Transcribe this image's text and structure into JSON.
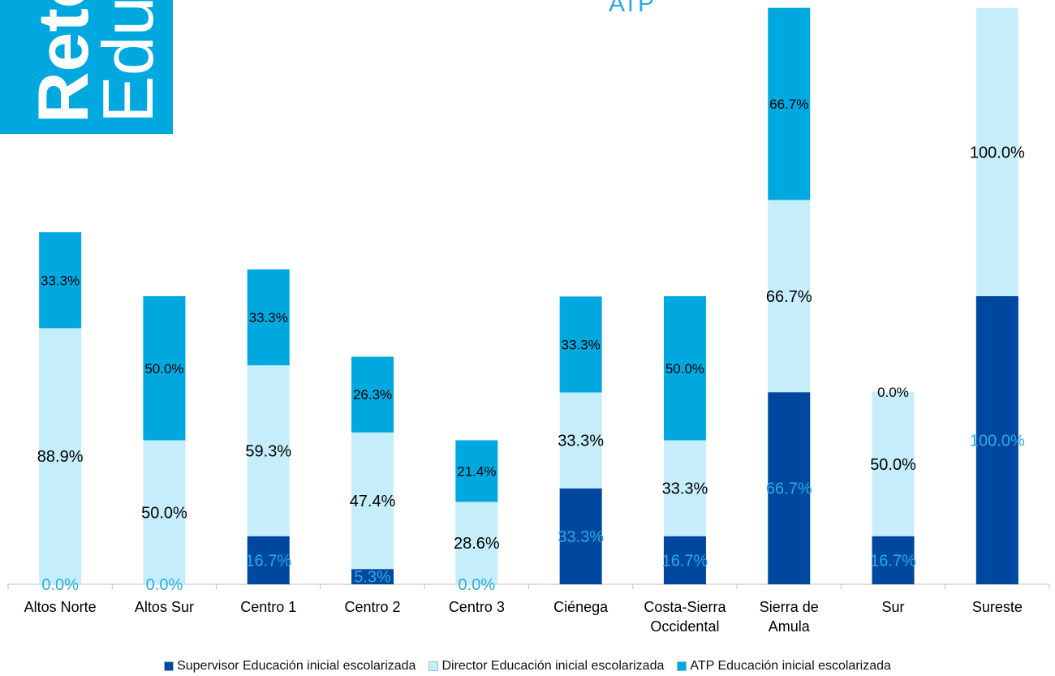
{
  "banner": {
    "bold": "Reto",
    "light": "Edu"
  },
  "chart_data": {
    "type": "stacked_bar",
    "title": "ATP",
    "categories": [
      "Altos Norte",
      "Altos Sur",
      "Centro 1",
      "Centro 2",
      "Centro 3",
      "Ciénega",
      "Costa-Sierra Occidental",
      "Sierra de Amula",
      "Sur",
      "Sureste"
    ],
    "series": [
      {
        "name": "Supervisor Educación inicial escolarizada",
        "color": "#0047a0",
        "label_color": "#29abe2",
        "values": [
          0,
          0,
          16.7,
          5.3,
          0,
          33.3,
          16.7,
          66.7,
          16.7,
          100
        ],
        "value_labels": [
          "0.0%",
          "0.0%",
          "16.7%",
          "5.3%",
          "0.0%",
          "33.3%",
          "16.7%",
          "66.7%",
          "16.7%",
          "100.0%"
        ]
      },
      {
        "name": "Director Educación inicial escolarizada",
        "color": "#c6eefa",
        "label_color": "#000000",
        "values": [
          88.9,
          50,
          59.3,
          47.4,
          28.6,
          33.3,
          33.3,
          66.7,
          50,
          100
        ],
        "value_labels": [
          "88.9%",
          "50.0%",
          "59.3%",
          "47.4%",
          "28.6%",
          "33.3%",
          "33.3%",
          "66.7%",
          "50.0%",
          "100.0%"
        ]
      },
      {
        "name": "ATP Educación inicial escolarizada",
        "color": "#00a8e0",
        "label_color": "#000000",
        "values": [
          33.3,
          50,
          33.3,
          26.3,
          21.4,
          33.3,
          50,
          66.7,
          0,
          null
        ],
        "value_labels": [
          "33.3%",
          "50.0%",
          "33.3%",
          "26.3%",
          "21.4%",
          "33.3%",
          "50.0%",
          "66.7%",
          "0.0%",
          null
        ]
      }
    ],
    "ylim": [
      0,
      200
    ],
    "legend": "bottom"
  }
}
